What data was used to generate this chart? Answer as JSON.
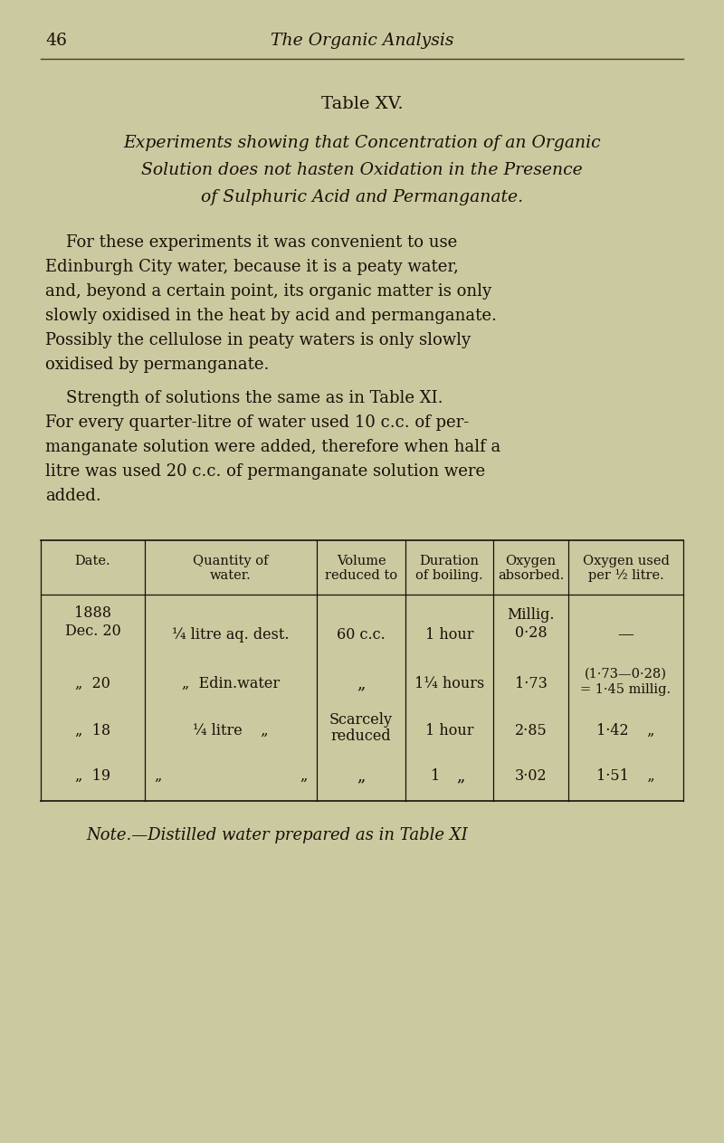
{
  "bg_color": "#cbc9a0",
  "text_color": "#1a1008",
  "page_number": "46",
  "page_header": "The Organic Analysis",
  "table_title": "Table XV.",
  "subtitle_lines": [
    "Experiments showing that Concentration of an Organic",
    "Solution does not hasten Oxidation in the Presence",
    "of Sulphuric Acid and Permanganate."
  ],
  "para1_lines": [
    "    For these experiments it was convenient to use",
    "Edinburgh City water, because it is a peaty water,",
    "and, beyond a certain point, its organic matter is only",
    "slowly oxidised in the heat by acid and permanganate.",
    "Possibly the cellulose in peaty waters is only slowly",
    "oxidised by permanganate."
  ],
  "para2_lines": [
    "    Strength of solutions the same as in Table XI.",
    "For every quarter-litre of water used 10 c.c. of per-",
    "manganate solution were added, therefore when half a",
    "litre was used 20 c.c. of permanganate solution were",
    "added."
  ],
  "col_headers_r1": [
    "Date.",
    "Quantity of",
    "Volume",
    "Duration",
    "Oxygen",
    "Oxygen used"
  ],
  "col_headers_r2": [
    "",
    "water.",
    "reduced to",
    "of boiling.",
    "absorbed.",
    "per ½ litre."
  ],
  "row0_date1": "1888",
  "row0_date2": "Dec. 20",
  "row0_qty": "¼ litre aq. dest.",
  "row0_vol": "60 c.c.",
  "row0_dur": "1 hour",
  "row0_oxy1": "Millig.",
  "row0_oxy2": "0·28",
  "row0_used": "—",
  "row1_date": "„  20",
  "row1_qty": "„  Edin.water",
  "row1_vol": "„",
  "row1_dur": "1¼ hours",
  "row1_oxy": "1·73",
  "row1_used1": "(1·73—0·28)",
  "row1_used2": "= 1·45 millig.",
  "row2_date": "„  18",
  "row2_qty": "¼ litre    „",
  "row2_vol1": "Scarcely",
  "row2_vol2": "reduced",
  "row2_dur": "1 hour",
  "row2_oxy": "2·85",
  "row2_used": "1·42    „",
  "row3_date": "„  19",
  "row3_qty1": "„",
  "row3_qty2": "„",
  "row3_vol": "„",
  "row3_dur1": "1",
  "row3_dur2": "„",
  "row3_oxy": "3·02",
  "row3_used": "1·51    „",
  "note": "Note.—Distilled water prepared as in Table XI"
}
